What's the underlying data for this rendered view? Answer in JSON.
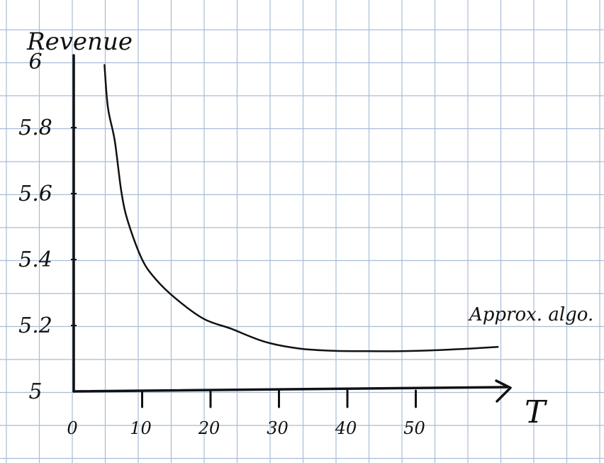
{
  "chart_data": {
    "type": "line",
    "ylabel": "Revenue",
    "xlabel": "T",
    "x_ticks": [
      {
        "value": 0,
        "label": "0"
      },
      {
        "value": 10,
        "label": "10"
      },
      {
        "value": 20,
        "label": "20"
      },
      {
        "value": 30,
        "label": "30"
      },
      {
        "value": 40,
        "label": "40"
      },
      {
        "value": 50,
        "label": "50"
      }
    ],
    "y_ticks": [
      {
        "value": 5.0,
        "label": "5"
      },
      {
        "value": 5.2,
        "label": "5.2"
      },
      {
        "value": 5.4,
        "label": "5.4"
      },
      {
        "value": 5.6,
        "label": "5.6"
      },
      {
        "value": 5.8,
        "label": "5.8"
      },
      {
        "value": 6.0,
        "label": "6"
      }
    ],
    "xlim": [
      0,
      63
    ],
    "ylim": [
      5.0,
      6.0
    ],
    "grid": true,
    "series": [
      {
        "name": "Approx. algo.",
        "x": [
          4.5,
          5,
          6,
          7,
          8,
          10,
          12,
          15,
          19,
          23,
          28,
          33,
          38,
          43,
          48,
          53,
          58,
          62
        ],
        "y": [
          5.99,
          5.86,
          5.76,
          5.6,
          5.51,
          5.4,
          5.34,
          5.28,
          5.22,
          5.19,
          5.15,
          5.13,
          5.123,
          5.122,
          5.122,
          5.125,
          5.13,
          5.135
        ]
      }
    ],
    "colors": {
      "ink": "#111111",
      "grid": "#a9bcd6",
      "paper": "#ffffff"
    }
  }
}
